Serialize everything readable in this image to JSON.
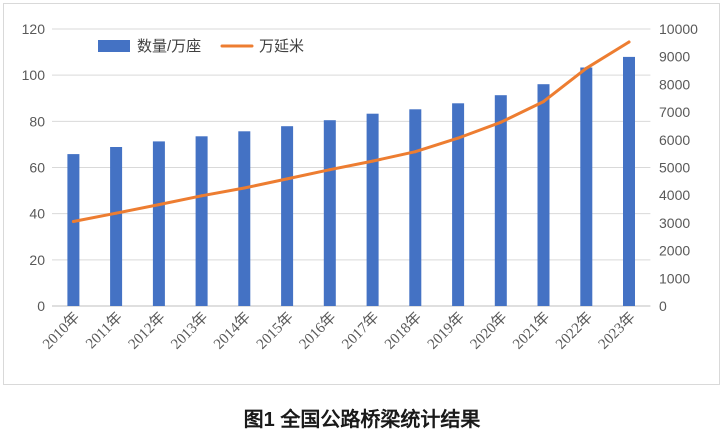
{
  "chart_data": {
    "type": "bar",
    "title": "图1 全国公路桥梁统计结果",
    "categories": [
      "2010年",
      "2011年",
      "2012年",
      "2013年",
      "2014年",
      "2015年",
      "2016年",
      "2017年",
      "2018年",
      "2019年",
      "2020年",
      "2021年",
      "2022年",
      "2023年"
    ],
    "series": [
      {
        "name": "数量/万座",
        "type": "bar",
        "axis": "left",
        "color": "#4472C4",
        "values": [
          65.8,
          68.9,
          71.3,
          73.5,
          75.7,
          77.9,
          80.5,
          83.3,
          85.2,
          87.8,
          91.3,
          96.1,
          103.3,
          107.9
        ]
      },
      {
        "name": "万延米",
        "type": "line",
        "axis": "right",
        "color": "#ED7D31",
        "values": [
          3050,
          3350,
          3660,
          3980,
          4260,
          4590,
          4920,
          5230,
          5570,
          6060,
          6630,
          7380,
          8580,
          9530
        ]
      }
    ],
    "ylim": [
      0,
      120
    ],
    "y_ticks": [
      0,
      20,
      40,
      60,
      80,
      100,
      120
    ],
    "y2lim": [
      0,
      10000
    ],
    "y2_ticks": [
      0,
      1000,
      2000,
      3000,
      4000,
      5000,
      6000,
      7000,
      8000,
      9000,
      10000
    ],
    "grid": true,
    "legend": "top-left"
  }
}
